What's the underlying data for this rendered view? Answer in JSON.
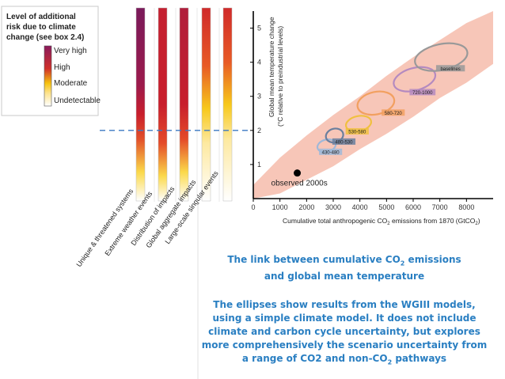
{
  "legend": {
    "title_lines": [
      "Level of additional",
      "risk due to climate",
      "change (see box 2.4)"
    ],
    "levels": [
      "Very high",
      "High",
      "Moderate",
      "Undetectable"
    ],
    "colors": [
      "#8a1a5c",
      "#d0302a",
      "#f6c20e",
      "#ffffff"
    ]
  },
  "risk_columns": {
    "labels": [
      "Unique & threatened systems",
      "Extreme weather events",
      "Distribution of impacts",
      "Global aggregate impacts",
      "Large-scale singular events"
    ],
    "marker_temperature": 2
  },
  "chart_data": {
    "type": "scatter",
    "title": "",
    "xlabel_parts": [
      "Cumulative total anthropogenic CO",
      "2",
      " emissions from 1870 (GtCO",
      "2",
      ")"
    ],
    "ylabel_lines": [
      "Global mean temperature change",
      "(°C relative to preindustrial levels)"
    ],
    "xlim": [
      0,
      9000
    ],
    "ylim": [
      0,
      5.5
    ],
    "xticks": [
      0,
      1000,
      2000,
      3000,
      4000,
      5000,
      6000,
      7000,
      8000
    ],
    "yticks": [
      1,
      2,
      3,
      4,
      5
    ],
    "band": {
      "name": "model range",
      "color": "#f4b3a0",
      "upper": [
        [
          0,
          0.4
        ],
        [
          1000,
          1.2
        ],
        [
          2000,
          1.85
        ],
        [
          3000,
          2.45
        ],
        [
          4000,
          3.0
        ],
        [
          5000,
          3.6
        ],
        [
          6000,
          4.15
        ],
        [
          7000,
          4.65
        ],
        [
          8000,
          5.15
        ],
        [
          9000,
          5.5
        ]
      ],
      "lower": [
        [
          9000,
          3.95
        ],
        [
          8000,
          3.4
        ],
        [
          7000,
          2.95
        ],
        [
          6000,
          2.4
        ],
        [
          5000,
          1.9
        ],
        [
          4000,
          1.45
        ],
        [
          3000,
          0.95
        ],
        [
          2000,
          0.55
        ],
        [
          1500,
          0.35
        ],
        [
          1000,
          0.15
        ],
        [
          0,
          0.0
        ]
      ]
    },
    "ellipses": [
      {
        "label": "430-480",
        "x": 2750,
        "y": 1.55,
        "rx": 350,
        "ry": 0.18,
        "angle": -15,
        "color": "#9fb8d8",
        "label_x": 2900,
        "label_y": 1.35
      },
      {
        "label": "480-530",
        "x": 3050,
        "y": 1.85,
        "rx": 330,
        "ry": 0.2,
        "angle": -15,
        "color": "#6a7f9e",
        "label_x": 3400,
        "label_y": 1.65
      },
      {
        "label": "530-580",
        "x": 3950,
        "y": 2.2,
        "rx": 480,
        "ry": 0.22,
        "angle": -12,
        "color": "#f0c040",
        "label_x": 3900,
        "label_y": 1.95
      },
      {
        "label": "580-720",
        "x": 4600,
        "y": 2.8,
        "rx": 700,
        "ry": 0.33,
        "angle": -12,
        "color": "#f2a060",
        "label_x": 5250,
        "label_y": 2.5
      },
      {
        "label": "720-1000",
        "x": 6050,
        "y": 3.5,
        "rx": 800,
        "ry": 0.33,
        "angle": -15,
        "color": "#b48ac0",
        "label_x": 6350,
        "label_y": 3.1
      },
      {
        "label": "baselines",
        "x": 7050,
        "y": 4.15,
        "rx": 1000,
        "ry": 0.38,
        "angle": -12,
        "color": "#999999",
        "label_x": 7400,
        "label_y": 3.8
      }
    ],
    "observed": {
      "label": "observed 2000s",
      "x": 1650,
      "y": 0.75
    }
  },
  "caption": {
    "title_line1_parts": [
      "The link between cumulative CO",
      "2",
      " emissions"
    ],
    "title_line2": "and global mean temperature",
    "body_line1": "The ellipses show results from the WGIII models,",
    "body_line2": "using a simple climate model. It does not include",
    "body_line3": "climate and carbon cycle uncertainty, but explores",
    "body_line4": "more comprehensively the scenario uncertainty from",
    "body_line5_parts": [
      "a range of CO2 and non-CO",
      "2",
      " pathways"
    ]
  }
}
